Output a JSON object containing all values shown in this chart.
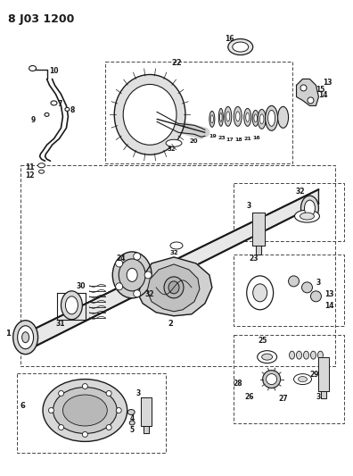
{
  "title": "8 J03 1200",
  "bg_color": "#ffffff",
  "line_color": "#1a1a1a",
  "fig_width": 3.96,
  "fig_height": 5.33,
  "dpi": 100
}
